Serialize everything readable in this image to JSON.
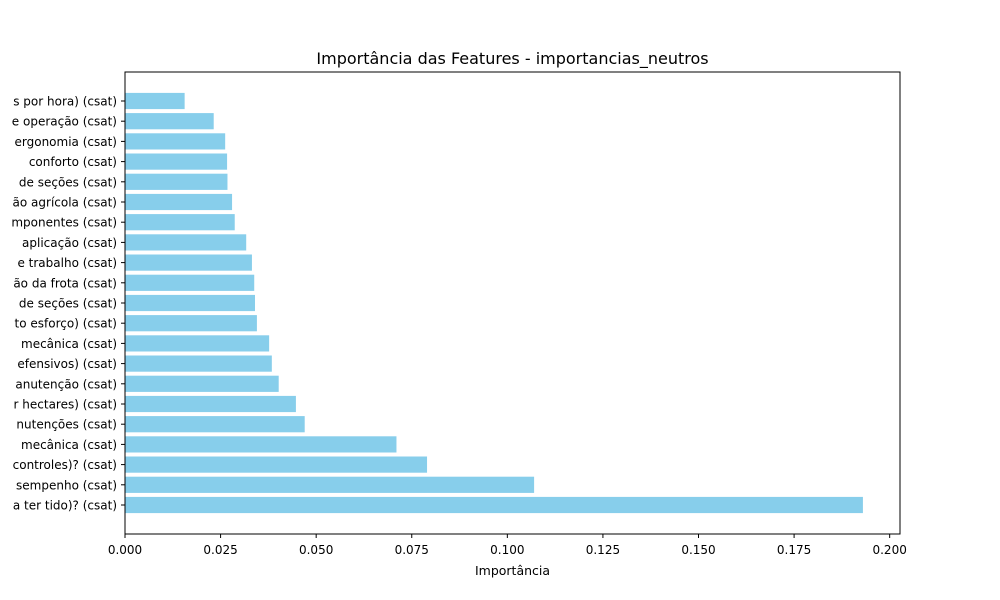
{
  "chart_data": {
    "type": "bar",
    "orientation": "horizontal",
    "title": "Importância das Features - importancias_neutros",
    "xlabel": "Importância",
    "ylabel": "",
    "xlim": [
      0,
      0.2027
    ],
    "xticks": [
      0.0,
      0.025,
      0.05,
      0.075,
      0.1,
      0.125,
      0.15,
      0.175,
      0.2
    ],
    "xtick_labels": [
      "0.000",
      "0.025",
      "0.050",
      "0.075",
      "0.100",
      "0.125",
      "0.150",
      "0.175",
      "0.200"
    ],
    "bar_color": "#87ceeb",
    "grid": false,
    "categories": [
      "a ter tido)? (csat)",
      "sempenho (csat)",
      "controles)? (csat)",
      "mecânica (csat)",
      "nutenções (csat)",
      "r hectares) (csat)",
      "anutenção (csat)",
      "efensivos) (csat)",
      "mecânica (csat)",
      "to esforço) (csat)",
      "de seções (csat)",
      "ão da frota (csat)",
      "e trabalho (csat)",
      "aplicação (csat)",
      "mponentes (csat)",
      "ão agrícola (csat)",
      "de seções (csat)",
      "conforto (csat)",
      "ergonomia (csat)",
      "e operação (csat)",
      "s por hora) (csat)"
    ],
    "values": [
      0.193,
      0.107,
      0.079,
      0.071,
      0.047,
      0.0447,
      0.0402,
      0.0384,
      0.0377,
      0.0345,
      0.034,
      0.0338,
      0.0332,
      0.0317,
      0.0287,
      0.028,
      0.0268,
      0.0267,
      0.0262,
      0.0232,
      0.0156
    ]
  }
}
